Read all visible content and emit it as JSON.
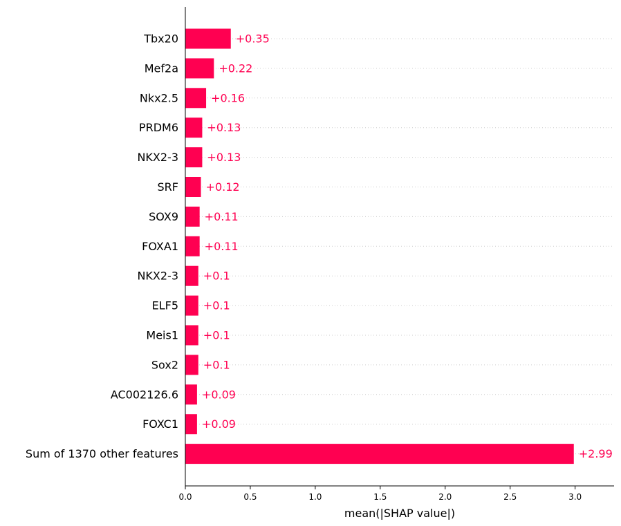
{
  "chart_data": {
    "type": "bar",
    "orientation": "horizontal",
    "categories": [
      "Tbx20",
      "Mef2a",
      "Nkx2.5",
      "PRDM6",
      "NKX2-3",
      "SRF",
      "SOX9",
      "FOXA1",
      "NKX2-3",
      "ELF5",
      "Meis1",
      "Sox2",
      "AC002126.6",
      "FOXC1",
      "Sum of 1370 other features"
    ],
    "values": [
      0.35,
      0.22,
      0.16,
      0.13,
      0.13,
      0.12,
      0.11,
      0.11,
      0.1,
      0.1,
      0.1,
      0.1,
      0.09,
      0.09,
      2.99
    ],
    "value_labels": [
      "+0.35",
      "+0.22",
      "+0.16",
      "+0.13",
      "+0.13",
      "+0.12",
      "+0.11",
      "+0.11",
      "+0.1",
      "+0.1",
      "+0.1",
      "+0.1",
      "+0.09",
      "+0.09",
      "+2.99"
    ],
    "xlabel": "mean(|SHAP value|)",
    "ylabel": "",
    "title": "",
    "xlim": [
      0.0,
      3.3
    ],
    "xticks": [
      0.0,
      0.5,
      1.0,
      1.5,
      2.0,
      2.5,
      3.0
    ],
    "xtick_labels": [
      "0.0",
      "0.5",
      "1.0",
      "1.5",
      "2.0",
      "2.5",
      "3.0"
    ],
    "grid": "dotted horizontal guide lines",
    "bar_color": "#ff0051",
    "label_color": "#ff0051"
  }
}
